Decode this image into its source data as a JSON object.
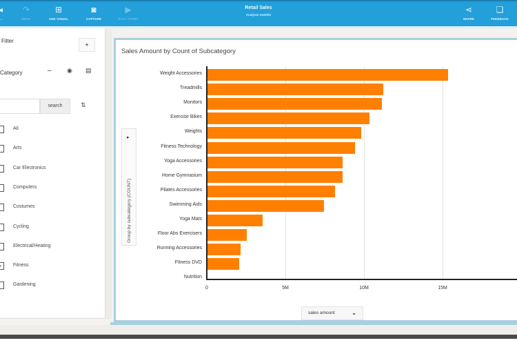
{
  "toolbar": {
    "buttons": [
      {
        "label": "...",
        "icon": "back-icon"
      },
      {
        "label": "REDO",
        "icon": "redo-icon"
      },
      {
        "label": "ADD VISUAL",
        "icon": "add-visual-icon"
      },
      {
        "label": "CAPTURE",
        "icon": "capture-icon"
      },
      {
        "label": "PLAY STORY",
        "icon": "play-icon"
      }
    ],
    "title": "Retail Sales",
    "subtitle": "Analysis Subtitle",
    "right_buttons": [
      {
        "label": "SHARE",
        "icon": "share-icon"
      },
      {
        "label": "FEEDBACK",
        "icon": "feedback-icon"
      }
    ]
  },
  "filter_panel": {
    "title": "Filter",
    "add_label": "+",
    "category_label": "Category",
    "search_placeholder": "",
    "search_value": "",
    "search_button": "search",
    "items": [
      {
        "label": "Ali",
        "checked": false
      },
      {
        "label": "Arts",
        "checked": false
      },
      {
        "label": "Car Electronics",
        "checked": false
      },
      {
        "label": "Computers",
        "checked": false
      },
      {
        "label": "Costumes",
        "checked": false
      },
      {
        "label": "Cycling",
        "checked": false
      },
      {
        "label": "Electrical/Heating",
        "checked": false
      },
      {
        "label": "Fitness",
        "checked": true
      },
      {
        "label": "Gardening",
        "checked": false
      }
    ]
  },
  "chart_card": {
    "group_by_label": "Group by subcategory (COUNT)",
    "measure_label": "sales amount"
  },
  "chart_data": {
    "type": "bar",
    "orientation": "horizontal",
    "title": "Sales Amount by Count of Subcategory",
    "xlabel": "sales amount",
    "ylabel": "Group by subcategory (COUNT)",
    "categories": [
      "Weight Accessories",
      "Treadmills",
      "Monitors",
      "Exercise Bikes",
      "Weights",
      "Fitness Technology",
      "Yoga Accessories",
      "Home Gymnasium",
      "Pilates Accessories",
      "Swimming Aids",
      "Yoga Mats",
      "Floor Abs Exercisers",
      "Running Accessories",
      "Fitness DVD",
      "Nutrition"
    ],
    "values": [
      15300000,
      11200000,
      11100000,
      10300000,
      9800000,
      9400000,
      8600000,
      8600000,
      8100000,
      7400000,
      3500000,
      2500000,
      2100000,
      2000000,
      0
    ],
    "xlim": [
      0,
      20000000
    ],
    "x_ticks": [
      "0",
      "5M",
      "10M",
      "15M"
    ],
    "x_tick_values": [
      0,
      5000000,
      10000000,
      15000000
    ],
    "grid": true,
    "legend": "none",
    "bar_color": "#ff8000"
  },
  "colors": {
    "toolbar": "#239fd9",
    "accent_border": "#a8cfe0",
    "bar": "#ff8000"
  }
}
